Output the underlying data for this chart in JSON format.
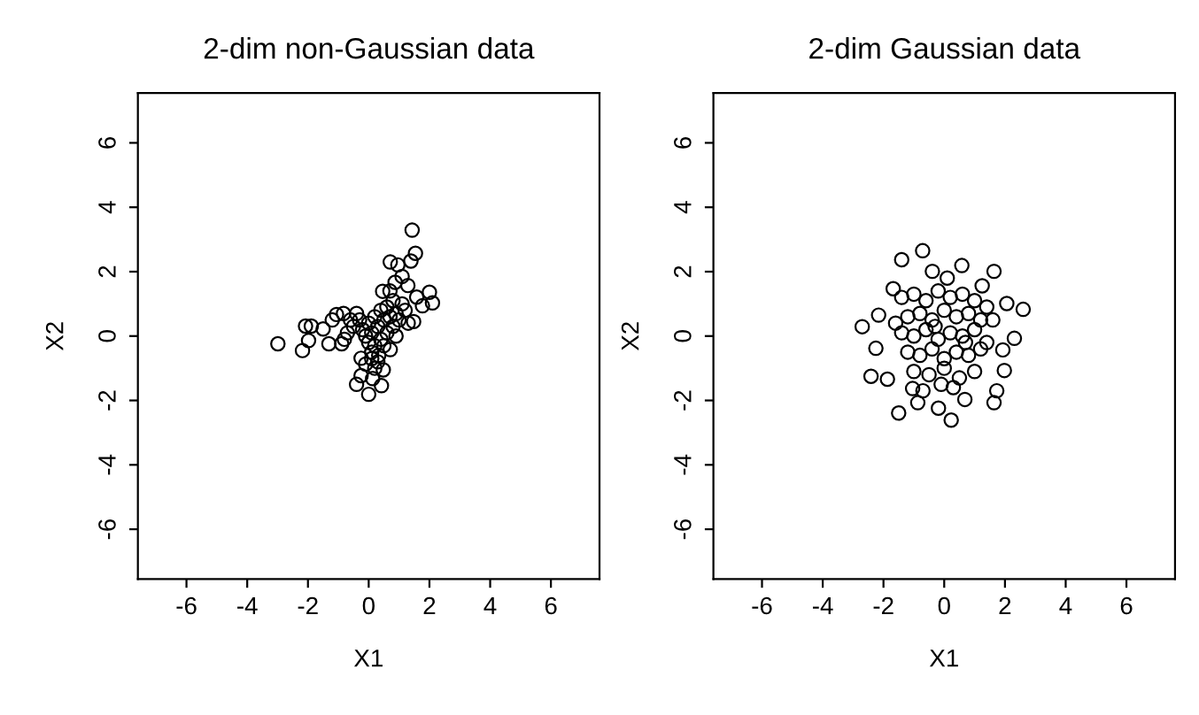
{
  "chart_data": [
    {
      "type": "scatter",
      "title": "2-dim non-Gaussian data",
      "xlabel": "X1",
      "ylabel": "X2",
      "xlim": [
        -7.6,
        7.6
      ],
      "ylim": [
        -7.55,
        7.55
      ],
      "xticks": [
        {
          "value": -6,
          "label": "-6"
        },
        {
          "value": -4,
          "label": "-4"
        },
        {
          "value": -2,
          "label": "-2"
        },
        0,
        2,
        4,
        6
      ],
      "yticks": [
        {
          "value": -6,
          "label": "-6"
        },
        {
          "value": -4,
          "label": "-4"
        },
        {
          "value": -2,
          "label": "-2"
        },
        0,
        2,
        4,
        6
      ],
      "marker": "circle",
      "grid": false,
      "series": [
        {
          "color": "#000000",
          "x": [
            -2.99,
            -2.18,
            -2.08,
            -1.98,
            -1.89,
            -1.5,
            -1.31,
            -1.06,
            -0.89,
            -0.83,
            1.43,
            1.54,
            1.39,
            0.71,
            0.96,
            1.1,
            0.87,
            1.29,
            2.0,
            2.1,
            1.77,
            1.58,
            1.48,
            0.46,
            -0.4,
            0.0,
            0.42,
            0.13,
            -0.25,
            0.48,
            -0.1,
            0.33,
            0.71,
            -0.25,
            -0.4,
            -0.3,
            -0.5,
            -0.2,
            0.0,
            0.1,
            0.2,
            0.3,
            0.4,
            0.5,
            0.6,
            0.7,
            0.8,
            0.9,
            1.0,
            1.1,
            1.2,
            0.6,
            0.4,
            0.2,
            0.1,
            0.0,
            -0.1,
            0.5,
            0.3,
            0.2,
            0.1,
            -0.7,
            -0.6,
            -1.2,
            -0.8,
            0.8,
            1.3,
            0.7,
            0.9
          ],
          "values": [
            -0.24,
            -0.45,
            0.31,
            -0.14,
            0.31,
            0.22,
            -0.24,
            0.67,
            -0.24,
            0.7,
            3.29,
            2.57,
            2.33,
            2.3,
            2.21,
            1.85,
            1.67,
            1.57,
            1.36,
            1.03,
            0.94,
            1.21,
            0.45,
            1.39,
            -1.5,
            -1.81,
            -1.54,
            -1.32,
            -1.23,
            -1.05,
            -0.87,
            -0.6,
            -0.42,
            -0.69,
            0.7,
            0.5,
            0.3,
            0.2,
            0.4,
            0.1,
            0.6,
            0.3,
            0.8,
            0.5,
            0.9,
            0.6,
            0.3,
            0.7,
            0.5,
            1.0,
            0.8,
            0.1,
            -0.1,
            -0.3,
            -0.5,
            -0.2,
            0.0,
            -0.3,
            -0.8,
            -1.0,
            -0.7,
            0.1,
            0.5,
            0.5,
            -0.1,
            1.1,
            0.4,
            1.4,
            0.0
          ]
        }
      ]
    },
    {
      "type": "scatter",
      "title": "2-dim Gaussian data",
      "xlabel": "X1",
      "ylabel": "X2",
      "xlim": [
        -7.6,
        7.6
      ],
      "ylim": [
        -7.55,
        7.55
      ],
      "xticks": [
        {
          "value": -6,
          "label": "-6"
        },
        {
          "value": -4,
          "label": "-4"
        },
        {
          "value": -2,
          "label": "-2"
        },
        0,
        2,
        4,
        6
      ],
      "yticks": [
        {
          "value": -6,
          "label": "-6"
        },
        {
          "value": -4,
          "label": "-4"
        },
        {
          "value": -2,
          "label": "-2"
        },
        0,
        2,
        4,
        6
      ],
      "marker": "circle",
      "grid": false,
      "series": [
        {
          "color": "#000000",
          "x": [
            -1.4,
            -0.71,
            -2.7,
            -2.41,
            -1.87,
            -2.25,
            2.6,
            2.06,
            1.64,
            2.31,
            1.93,
            1.98,
            1.73,
            1.64,
            0.58,
            1.25,
            -0.87,
            -0.19,
            0.68,
            -0.39,
            -1.68,
            -2.16,
            -1.5,
            0.23,
            -1.04,
            -1.4,
            -1.0,
            -0.6,
            -0.2,
            0.2,
            0.6,
            1.0,
            1.4,
            -1.2,
            -0.8,
            -0.4,
            0.0,
            0.4,
            0.8,
            1.2,
            -1.4,
            -1.0,
            -0.6,
            -0.2,
            0.2,
            0.6,
            1.0,
            1.4,
            -1.2,
            -0.8,
            -0.4,
            0.0,
            0.4,
            0.8,
            1.2,
            -1.0,
            -0.5,
            0.0,
            0.5,
            1.0,
            -0.7,
            0.3,
            -0.3,
            0.7,
            -1.6,
            1.6,
            -0.1,
            0.1
          ],
          "values": [
            2.37,
            2.65,
            0.29,
            -1.25,
            -1.34,
            -0.38,
            0.83,
            1.01,
            2.01,
            -0.07,
            -0.43,
            -1.07,
            -1.7,
            -2.07,
            2.19,
            1.56,
            -2.07,
            -2.24,
            -1.97,
            2.01,
            1.47,
            0.65,
            -2.39,
            -2.61,
            -1.63,
            1.2,
            1.3,
            1.1,
            1.4,
            1.2,
            1.3,
            1.1,
            0.9,
            0.6,
            0.7,
            0.5,
            0.8,
            0.6,
            0.7,
            0.5,
            0.1,
            0.0,
            0.2,
            -0.1,
            0.1,
            0.0,
            0.2,
            -0.2,
            -0.5,
            -0.6,
            -0.4,
            -0.7,
            -0.5,
            -0.6,
            -0.4,
            -1.1,
            -1.2,
            -1.0,
            -1.3,
            -1.1,
            -1.7,
            -1.6,
            0.3,
            -0.2,
            0.4,
            0.5,
            -1.5,
            1.8
          ]
        }
      ]
    }
  ]
}
